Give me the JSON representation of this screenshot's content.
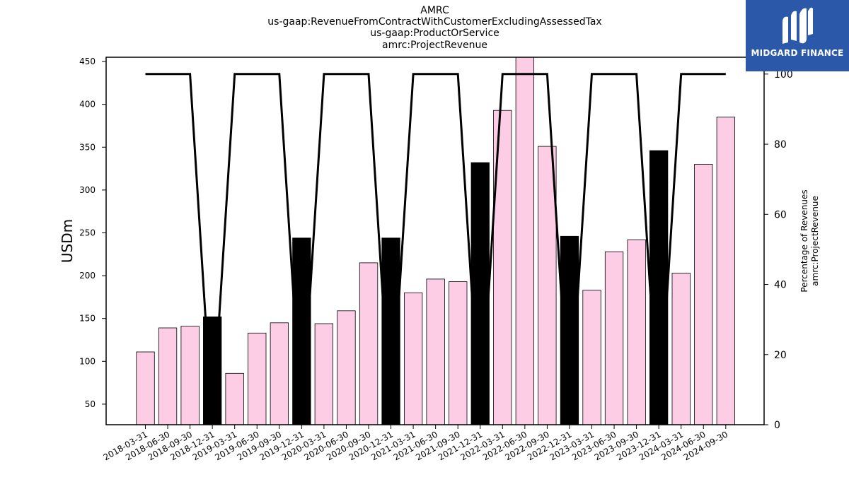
{
  "chart_data": {
    "type": "bar",
    "title_lines": [
      "AMRC",
      "us-gaap:RevenueFromContractWithCustomerExcludingAssessedTax",
      "us-gaap:ProductOrService",
      "amrc:ProjectRevenue"
    ],
    "ylabel": "USDm",
    "ylabel_right_lines": [
      "Percentage of Revenues",
      "amrc:ProjectRevenue"
    ],
    "categories": [
      "2018-03-31",
      "2018-06-30",
      "2018-09-30",
      "2018-12-31",
      "2019-03-31",
      "2019-06-30",
      "2019-09-30",
      "2019-12-31",
      "2020-03-31",
      "2020-06-30",
      "2020-09-30",
      "2020-12-31",
      "2021-03-31",
      "2021-06-30",
      "2021-09-30",
      "2021-12-31",
      "2022-03-31",
      "2022-06-30",
      "2022-09-30",
      "2022-12-31",
      "2023-03-31",
      "2023-06-30",
      "2023-09-30",
      "2023-12-31",
      "2024-03-31",
      "2024-06-30",
      "2024-09-30"
    ],
    "values": [
      111,
      139,
      141,
      152,
      86,
      133,
      145,
      244,
      144,
      159,
      215,
      244,
      180,
      196,
      193,
      332,
      393,
      460,
      351,
      246,
      183,
      228,
      242,
      346,
      203,
      330,
      385
    ],
    "bar_colors": [
      "#fccde5",
      "#fccde5",
      "#fccde5",
      "#000000",
      "#fccde5",
      "#fccde5",
      "#fccde5",
      "#000000",
      "#fccde5",
      "#fccde5",
      "#fccde5",
      "#000000",
      "#fccde5",
      "#fccde5",
      "#fccde5",
      "#000000",
      "#fccde5",
      "#fccde5",
      "#fccde5",
      "#000000",
      "#fccde5",
      "#fccde5",
      "#fccde5",
      "#000000",
      "#fccde5",
      "#fccde5",
      "#fccde5"
    ],
    "percentage_series": [
      100,
      100,
      100,
      0,
      100,
      100,
      100,
      0,
      100,
      100,
      100,
      0,
      100,
      100,
      100,
      0,
      100,
      100,
      100,
      0,
      100,
      100,
      100,
      0,
      100,
      100,
      100
    ],
    "ylim": [
      26,
      455
    ],
    "yticks": [
      50,
      100,
      150,
      200,
      250,
      300,
      350,
      400,
      450
    ],
    "ylim_right": [
      0,
      104.8
    ],
    "yticks_right": [
      0,
      20,
      40,
      60,
      80,
      100
    ],
    "grid": false
  },
  "logo": {
    "text": "MIDGARD FINANCE",
    "color": "#2b58a8"
  }
}
